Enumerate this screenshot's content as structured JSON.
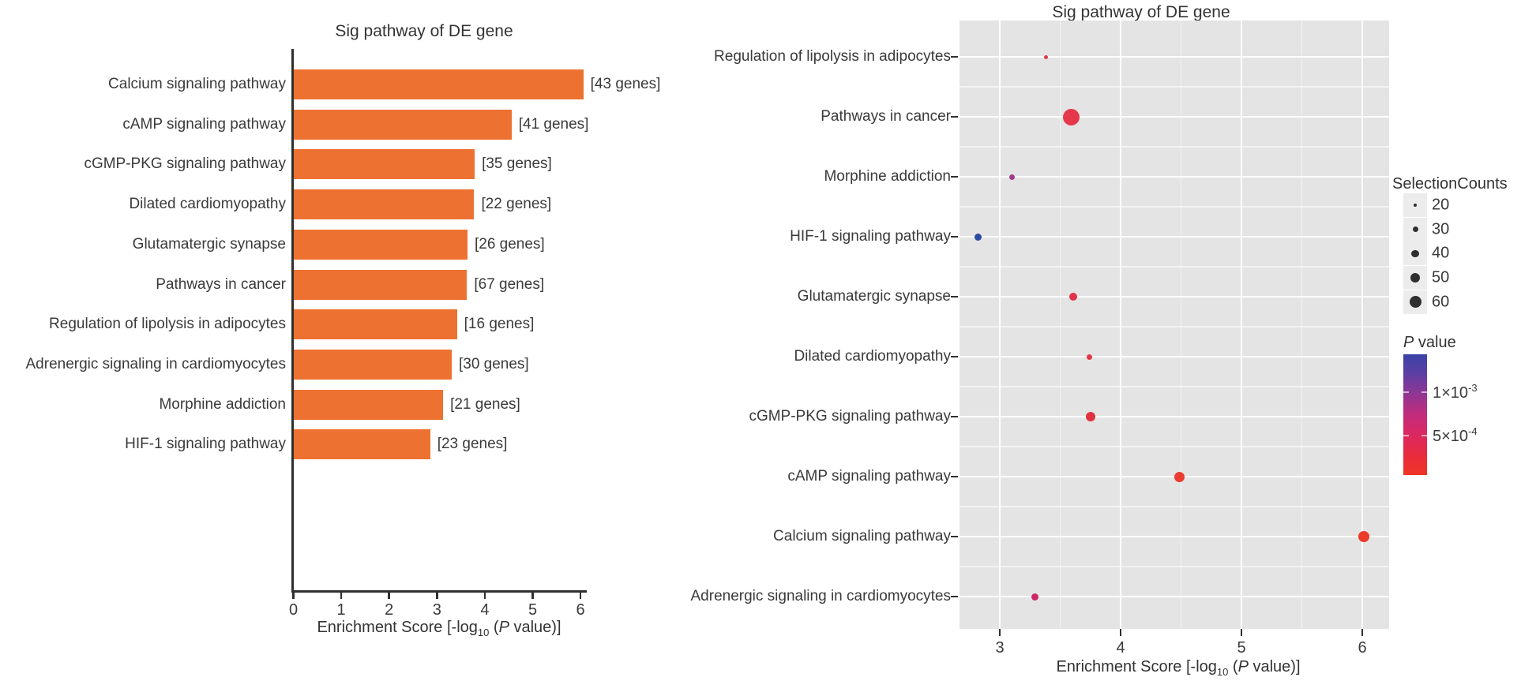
{
  "page": {
    "background": "#ffffff",
    "text_color": "#3a3a3a"
  },
  "axis_title_parts": {
    "pre": "Enrichment Score [-log",
    "sub": "10",
    "mid": " (",
    "italic": "P",
    "post": " value)]"
  },
  "chart_data": [
    {
      "id": "bar",
      "type": "bar",
      "title": "Sig pathway of DE gene",
      "xlabel": "Enrichment Score [-log10 (P value)]",
      "xlim": [
        0,
        6.2
      ],
      "xticks": [
        "0",
        "1",
        "2",
        "3",
        "4",
        "5",
        "6"
      ],
      "bar_color": "#ED7130",
      "categories": [
        "Calcium signaling pathway",
        "cAMP signaling pathway",
        "cGMP-PKG signaling pathway",
        "Dilated cardiomyopathy",
        "Glutamatergic synapse",
        "Pathways in cancer",
        "Regulation of lipolysis in adipocytes",
        "Adrenergic signaling in cardiomyocytes",
        "Morphine addiction",
        "HIF-1 signaling pathway"
      ],
      "values": [
        6.05,
        4.55,
        3.78,
        3.77,
        3.63,
        3.62,
        3.41,
        3.3,
        3.12,
        2.85
      ],
      "gene_labels": [
        "[43 genes]",
        "[41 genes]",
        "[35 genes]",
        "[22 genes]",
        "[26 genes]",
        "[67 genes]",
        "[16 genes]",
        "[30 genes]",
        "[21 genes]",
        "[23 genes]"
      ]
    },
    {
      "id": "dot",
      "type": "scatter",
      "title": "Sig pathway of DE gene",
      "xlabel": "Enrichment Score [-log10 (P value)]",
      "xlim": [
        2.67,
        6.22
      ],
      "xticks": [
        "3",
        "4",
        "5",
        "6"
      ],
      "panel_bg": "#e4e4e4",
      "categories": [
        "Regulation of lipolysis in adipocytes",
        "Pathways in cancer",
        "Morphine addiction",
        "HIF-1 signaling pathway",
        "Glutamatergic synapse",
        "Dilated cardiomyopathy",
        "cGMP-PKG signaling pathway",
        "cAMP signaling pathway",
        "Calcium signaling pathway",
        "Adrenergic signaling in cardiomyocytes"
      ],
      "points": [
        {
          "x": 3.38,
          "count": 16,
          "r": 2.5,
          "color": "#DC3A4E"
        },
        {
          "x": 3.59,
          "count": 67,
          "r": 10.5,
          "color": "#E5384A"
        },
        {
          "x": 3.1,
          "count": 21,
          "r": 3.5,
          "color": "#A23A90"
        },
        {
          "x": 2.82,
          "count": 23,
          "r": 4.5,
          "color": "#2C4AA2"
        },
        {
          "x": 3.61,
          "count": 26,
          "r": 5.0,
          "color": "#E0344A"
        },
        {
          "x": 3.74,
          "count": 22,
          "r": 3.5,
          "color": "#E23846"
        },
        {
          "x": 3.75,
          "count": 35,
          "r": 6.0,
          "color": "#E1333F"
        },
        {
          "x": 4.49,
          "count": 41,
          "r": 6.5,
          "color": "#EA3C30"
        },
        {
          "x": 6.01,
          "count": 43,
          "r": 7.0,
          "color": "#ED3A28"
        },
        {
          "x": 3.29,
          "count": 30,
          "r": 4.5,
          "color": "#CE2769"
        }
      ]
    }
  ],
  "legend": {
    "size_title": "SelectionCounts",
    "sizes": [
      {
        "label": "20",
        "d": 4.5
      },
      {
        "label": "30",
        "d": 7
      },
      {
        "label": "40",
        "d": 9.5
      },
      {
        "label": "50",
        "d": 12
      },
      {
        "label": "60",
        "d": 15
      }
    ],
    "pvalue_italic": "P",
    "pvalue_rest": " value",
    "pvalue_labels": [
      {
        "pre": "1×10",
        "sup": "-3"
      },
      {
        "pre": "5×10",
        "sup": "-4"
      }
    ],
    "gradient_stops": [
      [
        "0%",
        "#3A43A6"
      ],
      [
        "15%",
        "#5A3FA4"
      ],
      [
        "31%",
        "#8A3796"
      ],
      [
        "50%",
        "#C22C7C"
      ],
      [
        "67%",
        "#DC2860"
      ],
      [
        "85%",
        "#E92C3C"
      ],
      [
        "100%",
        "#EE3424"
      ]
    ],
    "dot_color": "#2f2f2f"
  }
}
